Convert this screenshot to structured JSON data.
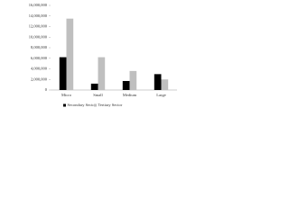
{
  "chart_data": {
    "type": "bar",
    "categories": [
      "Micro",
      "Small",
      "Medium",
      "Large"
    ],
    "series": [
      {
        "name": "Secondary Sector",
        "color": "#000000",
        "values": [
          6200000,
          1200000,
          1700000,
          3000000
        ]
      },
      {
        "name": "Tertiary Sector",
        "color": "#bfbfbf",
        "values": [
          13500000,
          6200000,
          3600000,
          2000000
        ]
      }
    ],
    "ylim": [
      0,
      16000000
    ],
    "yticks": [
      0,
      {
        "value": 2000000,
        "label": "2,000,000"
      },
      {
        "value": 4000000,
        "label": "4,000,000"
      },
      {
        "value": 6000000,
        "label": "6,000,000"
      },
      {
        "value": 8000000,
        "label": "8,000,000"
      },
      {
        "value": 10000000,
        "label": "10,000,000"
      },
      {
        "value": 12000000,
        "label": "12,000,000"
      },
      {
        "value": 14000000,
        "label": "14,000,000"
      },
      {
        "value": 16000000,
        "label": "16,000,000"
      }
    ],
    "legend": "bottom"
  }
}
